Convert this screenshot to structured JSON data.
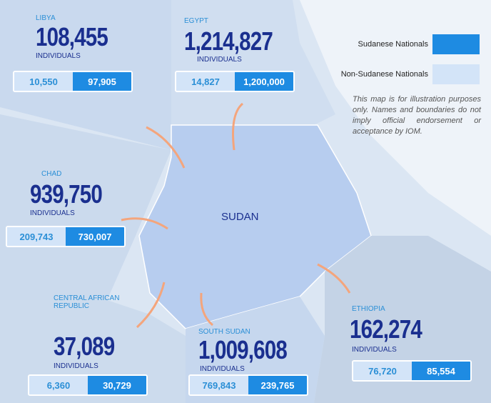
{
  "map_label": "SUDAN",
  "legend": [
    {
      "label": "Sudanese Nationals",
      "color": "#1e8be2"
    },
    {
      "label": "Non-Sudanese Nationals",
      "color": "#d3e4f8"
    }
  ],
  "disclaimer": "This map is for illustration purposes only. Names and boundaries do not imply official endorsement or acceptance by IOM.",
  "countries": [
    {
      "name": "LIBYA",
      "total": "108,455",
      "unit": "INDIVIDUALS",
      "non_sudanese": "10,550",
      "sudanese": "97,905"
    },
    {
      "name": "EGYPT",
      "total": "1,214,827",
      "unit": "INDIVIDUALS",
      "non_sudanese": "14,827",
      "sudanese": "1,200,000"
    },
    {
      "name": "CHAD",
      "total": "939,750",
      "unit": "INDIVIDUALS",
      "non_sudanese": "209,743",
      "sudanese": "730,007"
    },
    {
      "name": "CENTRAL AFRICAN REPUBLIC",
      "total": "37,089",
      "unit": "INDIVIDUALS",
      "non_sudanese": "6,360",
      "sudanese": "30,729"
    },
    {
      "name": "SOUTH SUDAN",
      "total": "1,009,608",
      "unit": "INDIVIDUALS",
      "non_sudanese": "769,843",
      "sudanese": "239,765"
    },
    {
      "name": "ETHIOPIA",
      "total": "162,274",
      "unit": "INDIVIDUALS",
      "non_sudanese": "76,720",
      "sudanese": "85,554"
    }
  ]
}
